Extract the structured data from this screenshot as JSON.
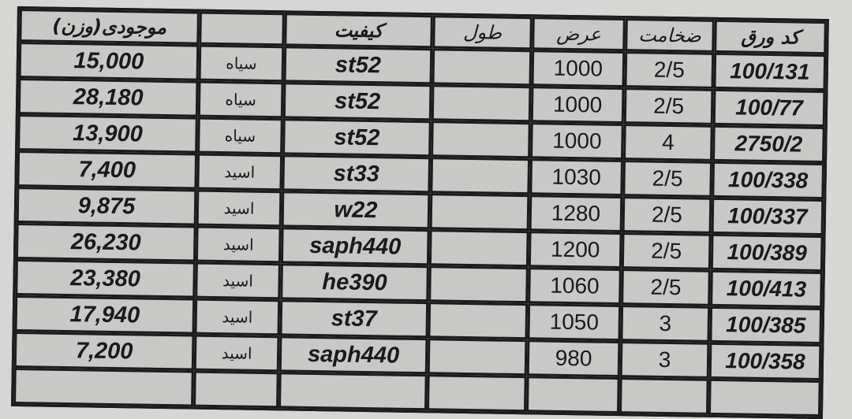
{
  "headers": [
    "موجودی(وزن)",
    "",
    "کیفیت",
    "طول",
    "عرض",
    "ضخامت",
    "کد ورق"
  ],
  "rows": [
    {
      "weight": "15,000",
      "type": "سیاه",
      "grade": "st52",
      "length": "",
      "width": "1000",
      "thickness": "2/5",
      "code": "100/131"
    },
    {
      "weight": "28,180",
      "type": "سیاه",
      "grade": "st52",
      "length": "",
      "width": "1000",
      "thickness": "2/5",
      "code": "100/77"
    },
    {
      "weight": "13,900",
      "type": "سیاه",
      "grade": "st52",
      "length": "",
      "width": "1000",
      "thickness": "4",
      "code": "2750/2"
    },
    {
      "weight": "7,400",
      "type": "اسید",
      "grade": "st33",
      "length": "",
      "width": "1030",
      "thickness": "2/5",
      "code": "100/338"
    },
    {
      "weight": "9,875",
      "type": "اسید",
      "grade": "w22",
      "length": "",
      "width": "1280",
      "thickness": "2/5",
      "code": "100/337"
    },
    {
      "weight": "26,230",
      "type": "اسید",
      "grade": "saph440",
      "length": "",
      "width": "1200",
      "thickness": "2/5",
      "code": "100/389"
    },
    {
      "weight": "23,380",
      "type": "اسید",
      "grade": "he390",
      "length": "",
      "width": "1060",
      "thickness": "2/5",
      "code": "100/413"
    },
    {
      "weight": "17,940",
      "type": "اسید",
      "grade": "st37",
      "length": "",
      "width": "1050",
      "thickness": "3",
      "code": "100/385"
    },
    {
      "weight": "7,200",
      "type": "اسید",
      "grade": "saph440",
      "length": "",
      "width": "980",
      "thickness": "3",
      "code": "100/358"
    }
  ]
}
